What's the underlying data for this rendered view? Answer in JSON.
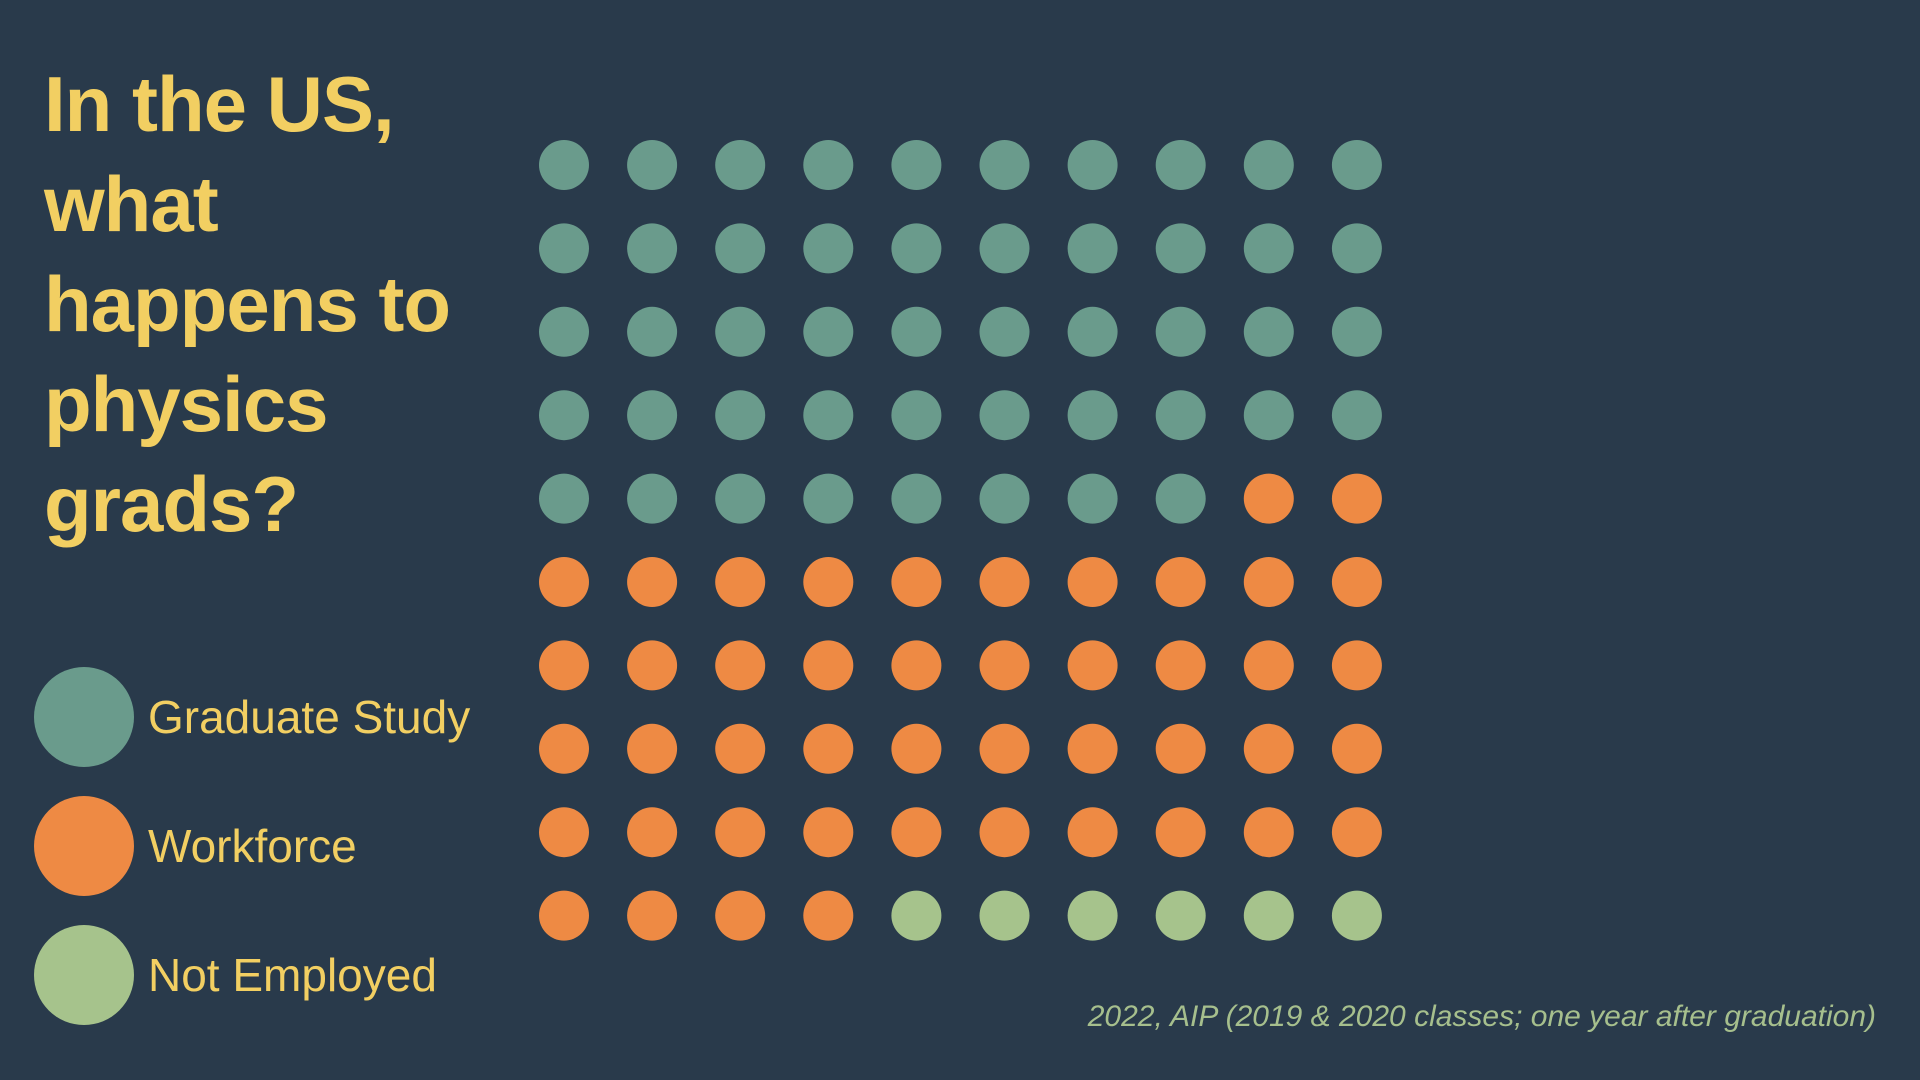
{
  "title": "In the US, what happens to physics grads?",
  "source": "2022, AIP (2019 & 2020 classes; one year after graduation)",
  "chart_data": {
    "type": "waffle",
    "grid": {
      "rows": 10,
      "columns": 10
    },
    "unit": "1 dot = 1%",
    "legend_placement": "left",
    "categories": [
      {
        "name": "Graduate Study",
        "value": 48,
        "color": "#6a9b8c"
      },
      {
        "name": "Workforce",
        "value": 46,
        "color": "#ee8a44"
      },
      {
        "name": "Not Employed",
        "value": 6,
        "color": "#a6c38c"
      }
    ],
    "fill_order": "row-major, top-left to bottom-right"
  }
}
